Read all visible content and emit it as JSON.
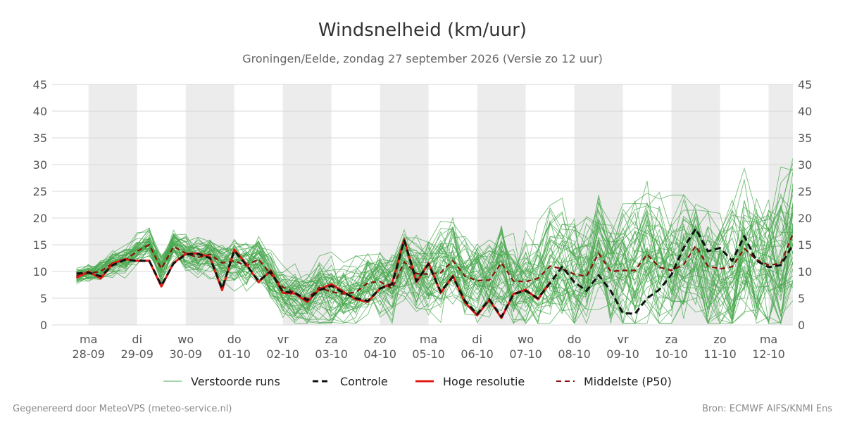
{
  "title": "Windsnelheid (km/uur)",
  "subtitle": "Groningen/Eelde, zondag 27 september 2026 (Versie zo 12 uur)",
  "footer_left": "Gegenereerd door MeteoVPS (meteo-service.nl)",
  "footer_right": "Bron: ECMWF AIFS/KNMI Ens",
  "legend": {
    "perturbed": "Verstoorde runs",
    "control": "Controle",
    "hires": "Hoge resolutie",
    "median": "Middelste (P50)"
  },
  "colors": {
    "perturbed": "#4aa84f",
    "control": "#111111",
    "hires": "#e01a12",
    "median": "#8b0d0d",
    "band": "#ececec",
    "grid": "#d9d9d9"
  },
  "chart_data": {
    "type": "line",
    "ylim": [
      0,
      45
    ],
    "yticks": [
      0,
      5,
      10,
      15,
      20,
      25,
      30,
      35,
      40,
      45
    ],
    "x_range_days": [
      -0.75,
      14.5
    ],
    "x_unit": "days from ma 28-09",
    "day_labels": [
      {
        "day": "ma",
        "date": "28-09"
      },
      {
        "day": "di",
        "date": "29-09"
      },
      {
        "day": "wo",
        "date": "30-09"
      },
      {
        "day": "do",
        "date": "01-10"
      },
      {
        "day": "vr",
        "date": "02-10"
      },
      {
        "day": "za",
        "date": "03-10"
      },
      {
        "day": "zo",
        "date": "04-10"
      },
      {
        "day": "ma",
        "date": "05-10"
      },
      {
        "day": "di",
        "date": "06-10"
      },
      {
        "day": "wo",
        "date": "07-10"
      },
      {
        "day": "do",
        "date": "08-10"
      },
      {
        "day": "vr",
        "date": "09-10"
      },
      {
        "day": "za",
        "date": "10-10"
      },
      {
        "day": "zo",
        "date": "11-10"
      },
      {
        "day": "ma",
        "date": "12-10"
      }
    ],
    "shaded_days": [
      0,
      2,
      4,
      6,
      8,
      10,
      12,
      14
    ],
    "x": [
      -0.25,
      0.0,
      0.25,
      0.5,
      0.75,
      1.0,
      1.25,
      1.5,
      1.75,
      2.0,
      2.25,
      2.5,
      2.75,
      3.0,
      3.25,
      3.5,
      3.75,
      4.0,
      4.25,
      4.5,
      4.75,
      5.0,
      5.25,
      5.5,
      5.75,
      6.0,
      6.25,
      6.5,
      6.75,
      7.0,
      7.25,
      7.5,
      7.75,
      8.0,
      8.25,
      8.5,
      8.75,
      9.0,
      9.25,
      9.5,
      9.75,
      10.0,
      10.25,
      10.5,
      10.75,
      11.0,
      11.25,
      11.5,
      11.75,
      12.0,
      12.25,
      12.5,
      12.75,
      13.0,
      13.25,
      13.5,
      13.75,
      14.0,
      14.25,
      14.5
    ],
    "series": [
      {
        "name": "Hoge resolutie",
        "key": "hires",
        "style": "solid",
        "values": [
          8.8,
          10.0,
          8.7,
          11.5,
          12.3,
          12.0,
          12.0,
          7.2,
          11.6,
          13.3,
          13.4,
          12.7,
          6.5,
          14.1,
          11.4,
          8.0,
          10.2,
          6.0,
          5.9,
          4.3,
          6.7,
          7.6,
          6.2,
          4.8,
          4.3,
          6.8,
          7.8,
          16.0,
          8.0,
          11.6,
          6.0,
          9.2,
          4.2,
          1.8,
          4.7,
          1.3,
          5.8,
          6.6,
          4.8,
          8.0,
          null,
          null,
          null,
          null,
          null,
          null,
          null,
          null,
          null,
          null,
          null,
          null,
          null,
          null,
          null,
          null,
          null,
          null,
          null,
          null
        ]
      },
      {
        "name": "Controle",
        "key": "control",
        "style": "dash",
        "values": [
          9.6,
          9.8,
          9.1,
          11.2,
          12.2,
          12.0,
          12.0,
          7.4,
          11.5,
          13.2,
          13.3,
          12.5,
          6.8,
          13.9,
          11.2,
          8.2,
          10.0,
          6.2,
          6.0,
          4.6,
          6.5,
          7.3,
          6.0,
          5.0,
          4.5,
          6.8,
          7.6,
          15.8,
          8.2,
          11.4,
          6.2,
          9.0,
          4.5,
          2.0,
          4.8,
          1.5,
          5.8,
          6.4,
          5.0,
          7.8,
          10.9,
          8.0,
          6.4,
          9.3,
          6.4,
          2.2,
          2.1,
          5.0,
          6.6,
          9.4,
          14.4,
          18.0,
          13.8,
          14.4,
          12.0,
          16.6,
          12.0,
          10.8,
          11.2,
          15.0
        ]
      },
      {
        "name": "Middelste (P50)",
        "key": "median",
        "style": "dash",
        "values": [
          9.2,
          9.7,
          10.0,
          11.6,
          12.1,
          13.8,
          15.0,
          10.5,
          14.7,
          13.4,
          12.6,
          13.2,
          11.6,
          12.0,
          11.1,
          12.3,
          9.5,
          7.1,
          6.0,
          4.9,
          7.0,
          6.2,
          5.8,
          6.1,
          7.9,
          8.1,
          6.8,
          11.8,
          9.6,
          9.5,
          9.8,
          12.0,
          9.1,
          8.3,
          8.4,
          11.6,
          8.2,
          8.1,
          8.7,
          11.0,
          10.5,
          9.5,
          9.1,
          13.4,
          10.0,
          10.2,
          10.2,
          13.2,
          10.8,
          10.2,
          11.3,
          14.8,
          11.0,
          10.5,
          10.9,
          14.3,
          12.2,
          11.2,
          11.5,
          17.0
        ]
      }
    ]
  }
}
